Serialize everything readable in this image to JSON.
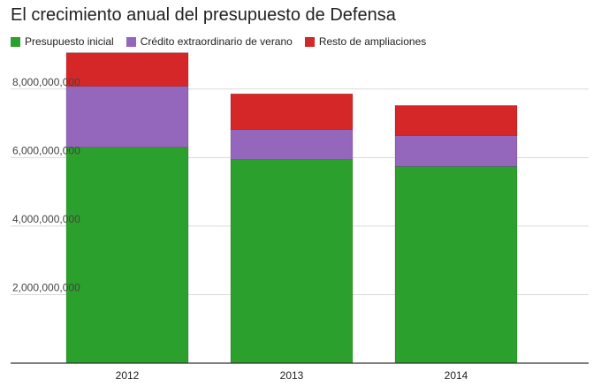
{
  "chart_data": {
    "type": "bar",
    "stacked": true,
    "title": "El crecimiento anual del presupuesto de Defensa",
    "categories": [
      "2012",
      "2013",
      "2014"
    ],
    "series": [
      {
        "name": "Presupuesto inicial",
        "color": "#2ca02c",
        "values": [
          6300000000,
          5940000000,
          5740000000
        ]
      },
      {
        "name": "Crédito extraordinario de verano",
        "color": "#9467bd",
        "values": [
          1780000000,
          880000000,
          900000000
        ]
      },
      {
        "name": "Resto de ampliaciones",
        "color": "#d62728",
        "values": [
          980000000,
          1040000000,
          880000000
        ]
      }
    ],
    "yticks": [
      "2,000,000,000",
      "4,000,000,000",
      "6,000,000,000",
      "8,000,000,000"
    ],
    "ytick_values": [
      2000000000,
      4000000000,
      6000000000,
      8000000000
    ],
    "ylim": [
      0,
      9000000000
    ],
    "xlabel": "",
    "ylabel": "",
    "grid": true,
    "legend_position": "top-left"
  }
}
